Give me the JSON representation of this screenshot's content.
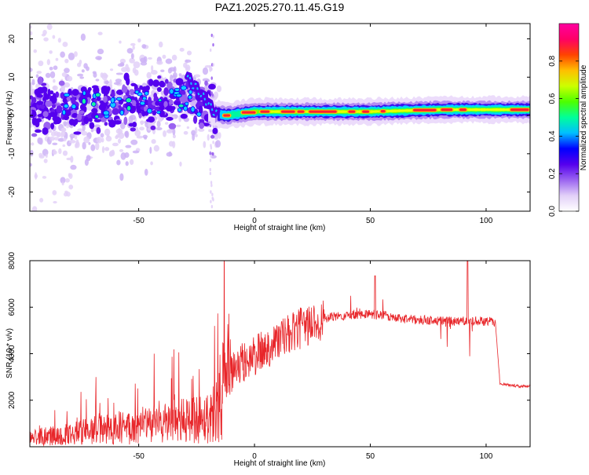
{
  "title": "PAZ1.2025.270.11.45.G19",
  "colors": {
    "snr_line": "#e8262a",
    "axis": "#000000"
  },
  "chart_data": [
    {
      "type": "heatmap",
      "name": "spectrogram",
      "xlabel": "Height of straight line (km)",
      "ylabel": "Frequency (Hz)",
      "xlim": [
        -97,
        119
      ],
      "ylim": [
        -25,
        24
      ],
      "xticks": [
        -50,
        0,
        50,
        100
      ],
      "xtick_labels": [
        "-50",
        "0",
        "50",
        "100"
      ],
      "yticks": [
        -20,
        -10,
        0,
        10,
        20
      ],
      "ytick_labels": [
        "-20",
        "-10",
        "0",
        "10",
        "20"
      ],
      "colorbar": {
        "label": "Normalized spectral amplitude",
        "range": [
          0.0,
          1.0
        ],
        "ticks": [
          0.0,
          0.2,
          0.4,
          0.6,
          0.8
        ],
        "tick_labels": [
          "0.0",
          "0.2",
          "0.4",
          "0.6",
          "0.8"
        ],
        "colormap": [
          "#ffffff",
          "#e2d0f8",
          "#9a63f0",
          "#5500ee",
          "#0000ff",
          "#00bfff",
          "#00ff9a",
          "#4cff00",
          "#ccff00",
          "#ffbf00",
          "#ff4400",
          "#ff0066",
          "#ff00a0"
        ]
      },
      "ridge": [
        {
          "x": -97,
          "f": 2
        },
        {
          "x": -80,
          "f": 2
        },
        {
          "x": -60,
          "f": 3
        },
        {
          "x": -40,
          "f": 3
        },
        {
          "x": -28,
          "f": 5
        },
        {
          "x": -22,
          "f": 3
        },
        {
          "x": -17,
          "f": 0.5
        },
        {
          "x": -12,
          "f": 0
        },
        {
          "x": 0,
          "f": 1
        },
        {
          "x": 20,
          "f": 1
        },
        {
          "x": 50,
          "f": 1
        },
        {
          "x": 80,
          "f": 1.5
        },
        {
          "x": 100,
          "f": 1.5
        },
        {
          "x": 119,
          "f": 1.5
        }
      ]
    },
    {
      "type": "line",
      "name": "snr",
      "xlabel": "Height of straight line (km)",
      "ylabel": "SNR (10 * v/v)",
      "xlim": [
        -97,
        119
      ],
      "ylim": [
        0,
        8000
      ],
      "xticks": [
        -50,
        0,
        50,
        100
      ],
      "xtick_labels": [
        "-50",
        "0",
        "50",
        "100"
      ],
      "yticks": [
        2000,
        4000,
        6000,
        8000
      ],
      "ytick_labels": [
        "2000",
        "4000",
        "6000",
        "8000"
      ],
      "x": [
        -97,
        -90,
        -80,
        -70,
        -60,
        -50,
        -40,
        -30,
        -25,
        -20,
        -17,
        -15,
        -13,
        -10,
        -5,
        0,
        5,
        10,
        15,
        20,
        25,
        30,
        35,
        40,
        45,
        50,
        55,
        60,
        65,
        70,
        75,
        80,
        85,
        90,
        95,
        100,
        104,
        106,
        110,
        115,
        119
      ],
      "y": [
        400,
        450,
        550,
        700,
        800,
        900,
        1000,
        1100,
        1200,
        1300,
        1500,
        2000,
        2700,
        3200,
        3600,
        3900,
        4200,
        4600,
        4800,
        5100,
        5300,
        5500,
        5600,
        5650,
        5700,
        5700,
        5650,
        5550,
        5500,
        5450,
        5450,
        5400,
        5400,
        5400,
        5400,
        5400,
        5350,
        2700,
        2650,
        2600,
        2600
      ]
    }
  ]
}
